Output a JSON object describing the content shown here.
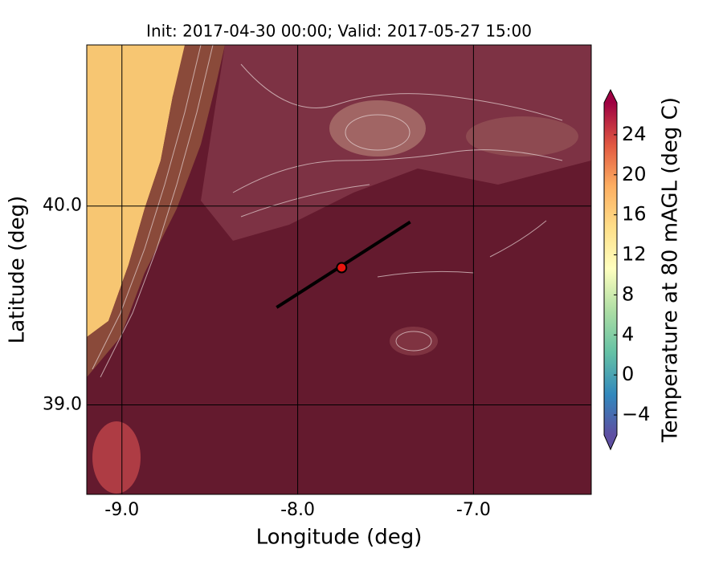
{
  "chart_data": {
    "type": "map",
    "title": "Init: 2017-04-30 00:00; Valid: 2017-05-27 15:00",
    "x_label": "Longitude (deg)",
    "y_label": "Latitude (deg)",
    "xlim": [
      -9.2,
      -6.33
    ],
    "ylim": [
      38.55,
      40.81
    ],
    "xticks": [
      {
        "value": -9,
        "label": "-9.0"
      },
      {
        "value": -8,
        "label": "-8.0"
      },
      {
        "value": -7,
        "label": "-7.0"
      }
    ],
    "yticks": [
      {
        "value": 39,
        "label": "39.0"
      },
      {
        "value": 40,
        "label": "40.0"
      }
    ],
    "grid": true,
    "section_line": {
      "lon": [
        -8.12,
        -7.36
      ],
      "lat": [
        39.49,
        39.92
      ],
      "color": "#000000"
    },
    "point": {
      "lon": -7.75,
      "lat": 39.69,
      "color": "#e8150f"
    },
    "colorbar": {
      "label": "Temperature at 80 mAGL (deg C)",
      "lim": [
        -6,
        27.2
      ],
      "ticks": [
        {
          "value": -4,
          "label": "−4"
        },
        0,
        4,
        8,
        12,
        16,
        20,
        24
      ]
    }
  }
}
